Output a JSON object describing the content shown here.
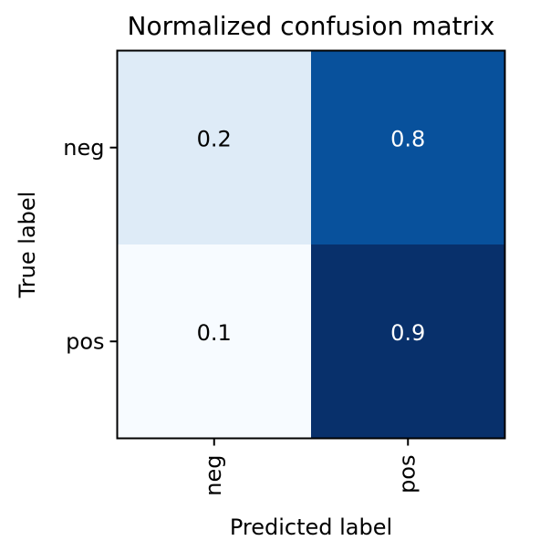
{
  "chart_data": {
    "type": "heatmap",
    "title": "Normalized confusion matrix",
    "xlabel": "Predicted label",
    "ylabel": "True label",
    "x_categories": [
      "neg",
      "pos"
    ],
    "y_categories": [
      "neg",
      "pos"
    ],
    "values": [
      [
        0.2,
        0.8
      ],
      [
        0.1,
        0.9
      ]
    ],
    "value_labels": [
      [
        "0.2",
        "0.8"
      ],
      [
        "0.1",
        "0.9"
      ]
    ],
    "colormap": "Blues",
    "grid": false,
    "colorbar": false
  }
}
